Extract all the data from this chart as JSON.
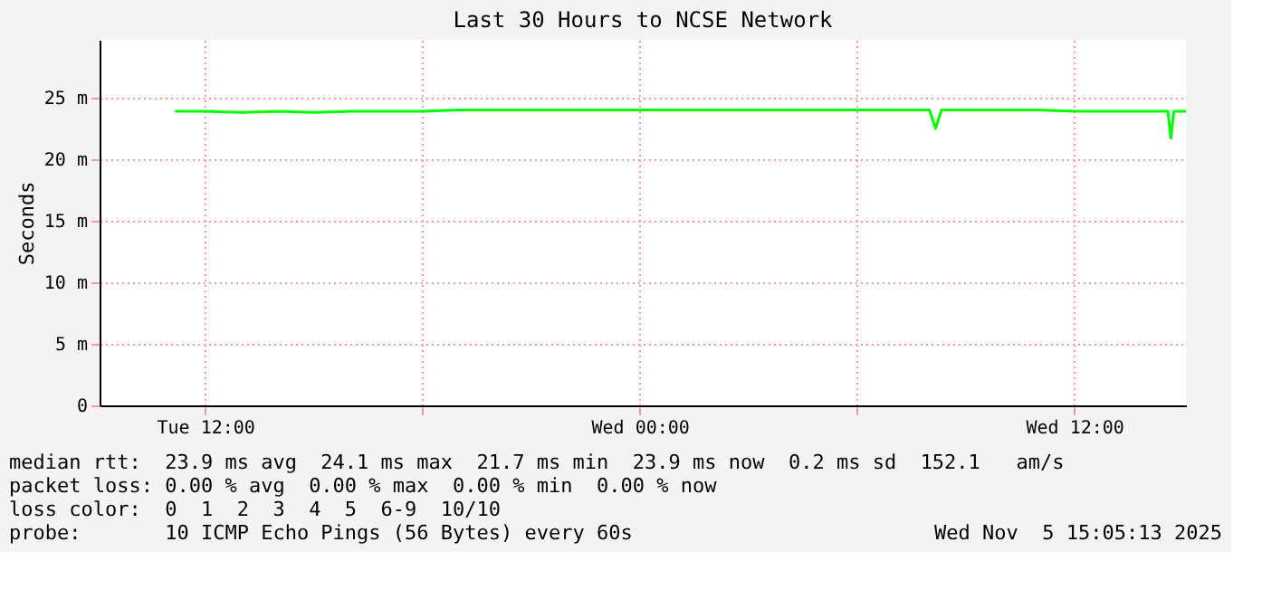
{
  "chart_data": {
    "type": "line",
    "title": "Last 30 Hours to NCSE Network",
    "ylabel": "Seconds",
    "xlim": [
      "2025-11-04T09:05",
      "2025-11-05T15:05"
    ],
    "xticks": [
      {
        "value": "2025-11-04T12:00",
        "label": "Tue 12:00"
      },
      {
        "value": "2025-11-04T18:00",
        "label": null
      },
      {
        "value": "2025-11-05T00:00",
        "label": "Wed 00:00"
      },
      {
        "value": "2025-11-05T06:00",
        "label": null
      },
      {
        "value": "2025-11-05T12:00",
        "label": "Wed 12:00"
      }
    ],
    "ylim": [
      0,
      29.7
    ],
    "yticks": [
      0,
      {
        "value": 5,
        "label": "5 m"
      },
      {
        "value": 10,
        "label": "10 m"
      },
      {
        "value": 15,
        "label": "15 m"
      },
      {
        "value": 20,
        "label": "20 m"
      },
      {
        "value": 25,
        "label": "25 m"
      }
    ],
    "grid": true,
    "line_style": "solid",
    "marker": "none",
    "series": [
      {
        "color": "#00ff00",
        "x": [
          "2025-11-04T11:10",
          "2025-11-04T12:00",
          "2025-11-04T13:00",
          "2025-11-04T14:00",
          "2025-11-04T15:00",
          "2025-11-04T16:00",
          "2025-11-04T17:00",
          "2025-11-04T18:00",
          "2025-11-04T19:00",
          "2025-11-04T20:00",
          "2025-11-04T21:00",
          "2025-11-04T22:00",
          "2025-11-04T23:00",
          "2025-11-05T00:00",
          "2025-11-05T01:00",
          "2025-11-05T02:00",
          "2025-11-05T03:00",
          "2025-11-05T04:00",
          "2025-11-05T05:00",
          "2025-11-05T06:00",
          "2025-11-05T07:00",
          "2025-11-05T08:00",
          "2025-11-05T08:10",
          "2025-11-05T08:20",
          "2025-11-05T09:00",
          "2025-11-05T10:00",
          "2025-11-05T11:00",
          "2025-11-05T12:00",
          "2025-11-05T13:00",
          "2025-11-05T14:00",
          "2025-11-05T14:35",
          "2025-11-05T14:40",
          "2025-11-05T14:45",
          "2025-11-05T15:05"
        ],
        "values": [
          23.9,
          23.9,
          23.8,
          23.9,
          23.8,
          23.9,
          23.9,
          23.9,
          24.0,
          24.0,
          24.0,
          24.0,
          24.0,
          24.0,
          24.0,
          24.0,
          24.0,
          24.0,
          24.0,
          24.0,
          24.0,
          24.0,
          22.5,
          24.0,
          24.0,
          24.0,
          24.0,
          23.9,
          23.9,
          23.9,
          23.9,
          21.7,
          23.9,
          23.9
        ]
      }
    ],
    "annotations": [
      "median rtt:  23.9 ms avg  24.1 ms max  21.7 ms min  23.9 ms now  0.2 ms sd  152.1   am/s",
      "packet loss: 0.00 % avg  0.00 % max  0.00 % min  0.00 % now",
      "loss color:  0  1  2  3  4  5  6-9  10/10",
      "probe:       10 ICMP Echo Pings (56 Bytes) every 60s",
      "Wed Nov  5 15:05:13 2025"
    ]
  }
}
